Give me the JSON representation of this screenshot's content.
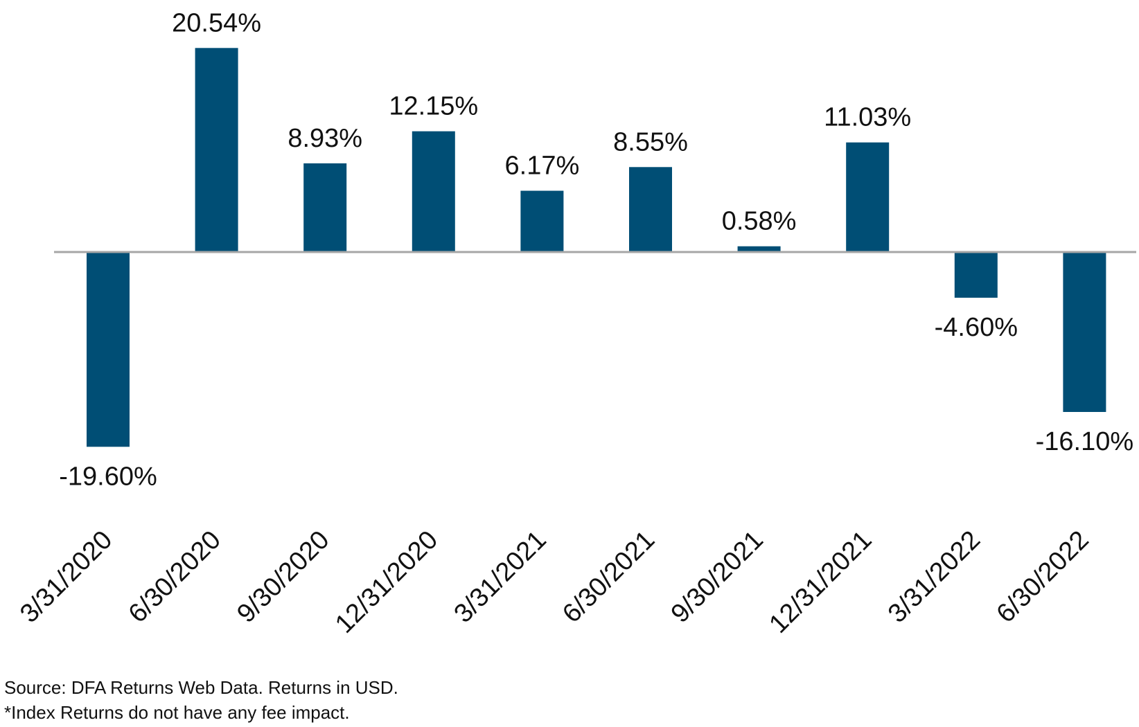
{
  "chart_data": {
    "type": "bar",
    "categories": [
      "3/31/2020",
      "6/30/2020",
      "9/30/2020",
      "12/31/2020",
      "3/31/2021",
      "6/30/2021",
      "9/30/2021",
      "12/31/2021",
      "3/31/2022",
      "6/30/2022"
    ],
    "values": [
      -19.6,
      20.54,
      8.93,
      12.15,
      6.17,
      8.55,
      0.58,
      11.03,
      -4.6,
      -16.1
    ],
    "data_labels": [
      "-19.60%",
      "20.54%",
      "8.93%",
      "12.15%",
      "6.17%",
      "8.55%",
      "0.58%",
      "11.03%",
      "-4.60%",
      "-16.10%"
    ],
    "bar_color": "#004e75",
    "axis_color": "#a6a6a6",
    "ylim": [
      -22,
      22
    ],
    "grid": false,
    "legend": "none"
  },
  "footnotes": {
    "source": "Source: DFA Returns Web Data. Returns in USD.",
    "fee": "*Index Returns do not have any fee impact."
  }
}
